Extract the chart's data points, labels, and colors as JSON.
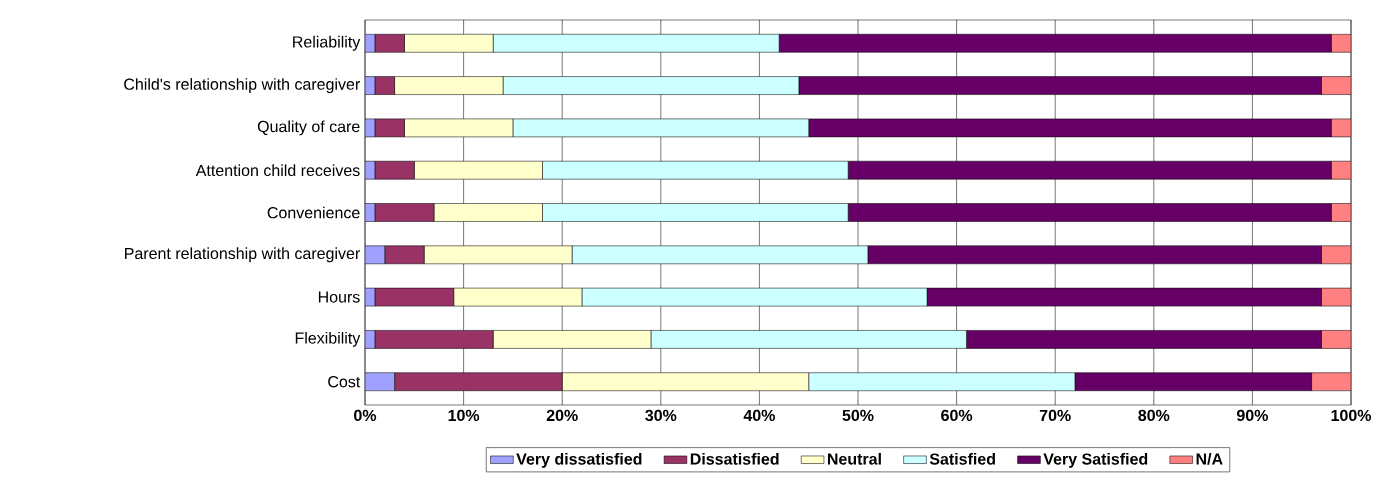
{
  "chart_data": {
    "type": "bar",
    "orientation": "horizontal",
    "stacked": true,
    "categories": [
      "Reliability",
      "Child's relationship with caregiver",
      "Quality of care",
      "Attention child receives",
      "Convenience",
      "Parent relationship with caregiver",
      "Hours",
      "Flexibility",
      "Cost"
    ],
    "series": [
      {
        "name": "Very dissatisfied",
        "color": "#a0a0ff",
        "values": [
          1,
          1,
          1,
          1,
          1,
          2,
          1,
          1,
          3
        ]
      },
      {
        "name": "Dissatisfied",
        "color": "#993366",
        "values": [
          3,
          2,
          3,
          4,
          6,
          4,
          8,
          12,
          17
        ]
      },
      {
        "name": "Neutral",
        "color": "#ffffcc",
        "values": [
          9,
          11,
          11,
          13,
          11,
          15,
          13,
          16,
          25
        ]
      },
      {
        "name": "Satisfied",
        "color": "#ccffff",
        "values": [
          29,
          30,
          30,
          31,
          31,
          30,
          35,
          32,
          27
        ]
      },
      {
        "name": "Very Satisfied",
        "color": "#660066",
        "values": [
          56,
          53,
          53,
          49,
          49,
          46,
          40,
          36,
          24
        ]
      },
      {
        "name": "N/A",
        "color": "#ff8080",
        "values": [
          2,
          3,
          2,
          2,
          2,
          3,
          3,
          3,
          4
        ]
      }
    ],
    "xlim": [
      0,
      100
    ],
    "xticks": [
      {
        "value": 0,
        "label": "0%"
      },
      {
        "value": 10,
        "label": "10%"
      },
      {
        "value": 20,
        "label": "20%"
      },
      {
        "value": 30,
        "label": "30%"
      },
      {
        "value": 40,
        "label": "40%"
      },
      {
        "value": 50,
        "label": "50%"
      },
      {
        "value": 60,
        "label": "60%"
      },
      {
        "value": 70,
        "label": "70%"
      },
      {
        "value": 80,
        "label": "80%"
      },
      {
        "value": 90,
        "label": "90%"
      },
      {
        "value": 100,
        "label": "100%"
      }
    ],
    "grid": "x",
    "legend": "bottom"
  }
}
